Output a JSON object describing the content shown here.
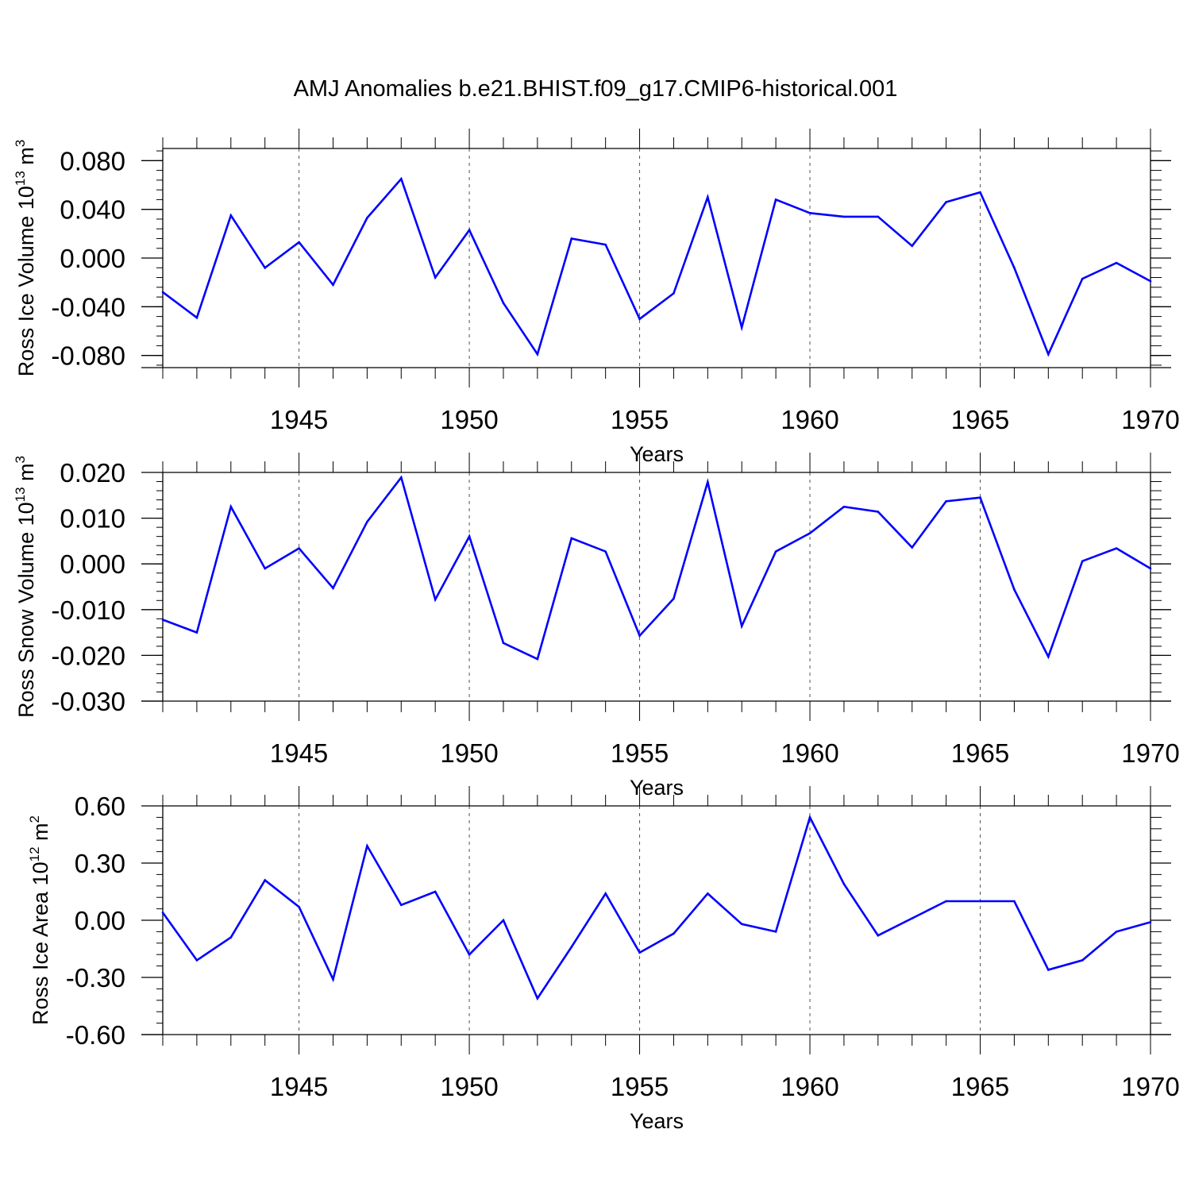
{
  "title": "AMJ Anomalies b.e21.BHIST.f09_g17.CMIP6-historical.001",
  "line_color": "#0000ff",
  "chart_data": [
    {
      "type": "line",
      "ylabel_main": "Ross Ice Volume 10",
      "ylabel_exp": "13",
      "ylabel_unit": " m",
      "ylabel_unit_exp": "3",
      "xlabel": "Years",
      "xlim": [
        1941,
        1970
      ],
      "ylim": [
        -0.09,
        0.09
      ],
      "yticks": [
        -0.08,
        -0.04,
        0.0,
        0.04,
        0.08
      ],
      "yticklabels": [
        "-0.080",
        "-0.040",
        "0.000",
        "0.040",
        "0.080"
      ],
      "xticks": [
        1945,
        1950,
        1955,
        1960,
        1965,
        1970
      ],
      "xticklabels": [
        "1945",
        "1950",
        "1955",
        "1960",
        "1965",
        "1970"
      ],
      "x": [
        1941,
        1942,
        1943,
        1944,
        1945,
        1946,
        1947,
        1948,
        1949,
        1950,
        1951,
        1952,
        1953,
        1954,
        1955,
        1956,
        1957,
        1958,
        1959,
        1960,
        1961,
        1962,
        1963,
        1964,
        1965,
        1966,
        1967,
        1968,
        1969,
        1970
      ],
      "values": [
        -0.028,
        -0.049,
        0.035,
        -0.008,
        0.013,
        -0.022,
        0.033,
        0.065,
        -0.016,
        0.023,
        -0.037,
        -0.079,
        0.016,
        0.011,
        -0.05,
        -0.029,
        0.05,
        -0.057,
        0.048,
        0.037,
        0.034,
        0.034,
        0.01,
        0.046,
        0.054,
        -0.008,
        -0.079,
        -0.017,
        -0.004,
        -0.019
      ]
    },
    {
      "type": "line",
      "ylabel_main": "Ross Snow Volume 10",
      "ylabel_exp": "13",
      "ylabel_unit": " m",
      "ylabel_unit_exp": "3",
      "xlabel": "Years",
      "xlim": [
        1941,
        1970
      ],
      "ylim": [
        -0.03,
        0.02
      ],
      "yticks": [
        -0.03,
        -0.02,
        -0.01,
        0.0,
        0.01,
        0.02
      ],
      "yticklabels": [
        "-0.030",
        "-0.020",
        "-0.010",
        "0.000",
        "0.010",
        "0.020"
      ],
      "xticks": [
        1945,
        1950,
        1955,
        1960,
        1965,
        1970
      ],
      "xticklabels": [
        "1945",
        "1950",
        "1955",
        "1960",
        "1965",
        "1970"
      ],
      "x": [
        1941,
        1942,
        1943,
        1944,
        1945,
        1946,
        1947,
        1948,
        1949,
        1950,
        1951,
        1952,
        1953,
        1954,
        1955,
        1956,
        1957,
        1958,
        1959,
        1960,
        1961,
        1962,
        1963,
        1964,
        1965,
        1966,
        1967,
        1968,
        1969,
        1970
      ],
      "values": [
        -0.0122,
        -0.015,
        0.0125,
        -0.001,
        0.0034,
        -0.0053,
        0.0092,
        0.0189,
        -0.0078,
        0.006,
        -0.0173,
        -0.0208,
        0.0056,
        0.0027,
        -0.0157,
        -0.0076,
        0.0179,
        -0.0136,
        0.0027,
        0.0067,
        0.0125,
        0.0114,
        0.0036,
        0.0137,
        0.0145,
        -0.0056,
        -0.0203,
        0.0006,
        0.0034,
        -0.001
      ]
    },
    {
      "type": "line",
      "ylabel_main": "Ross Ice Area 10",
      "ylabel_exp": "12",
      "ylabel_unit": " m",
      "ylabel_unit_exp": "2",
      "xlabel": "Years",
      "xlim": [
        1941,
        1970
      ],
      "ylim": [
        -0.6,
        0.6
      ],
      "yticks": [
        -0.6,
        -0.3,
        0.0,
        0.3,
        0.6
      ],
      "yticklabels": [
        "-0.60",
        "-0.30",
        "0.00",
        "0.30",
        "0.60"
      ],
      "xticks": [
        1945,
        1950,
        1955,
        1960,
        1965,
        1970
      ],
      "xticklabels": [
        "1945",
        "1950",
        "1955",
        "1960",
        "1965",
        "1970"
      ],
      "x": [
        1941,
        1942,
        1943,
        1944,
        1945,
        1946,
        1947,
        1948,
        1949,
        1950,
        1951,
        1952,
        1953,
        1954,
        1955,
        1956,
        1957,
        1958,
        1959,
        1960,
        1961,
        1962,
        1963,
        1964,
        1965,
        1966,
        1967,
        1968,
        1969,
        1970
      ],
      "values": [
        0.04,
        -0.21,
        -0.09,
        0.21,
        0.07,
        -0.31,
        0.39,
        0.08,
        0.15,
        -0.18,
        0.0,
        -0.41,
        -0.14,
        0.14,
        -0.17,
        -0.07,
        0.14,
        -0.02,
        -0.06,
        0.54,
        0.19,
        -0.08,
        0.01,
        0.1,
        0.1,
        0.1,
        -0.26,
        -0.21,
        -0.06,
        -0.01
      ]
    }
  ]
}
